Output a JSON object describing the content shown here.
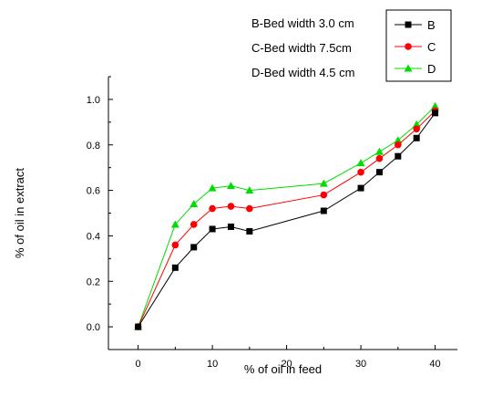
{
  "chart_data": {
    "type": "line",
    "title": "",
    "xlabel": "% of oil in feed",
    "ylabel": "% of oil in extract",
    "xlim": [
      -4,
      43
    ],
    "ylim": [
      -0.1,
      1.1
    ],
    "xticks": [
      0,
      10,
      20,
      30,
      40
    ],
    "yticks": [
      0.0,
      0.2,
      0.4,
      0.6,
      0.8,
      1.0
    ],
    "ytick_labels": [
      "0.0",
      "0.2",
      "0.4",
      "0.6",
      "0.8",
      "1.0"
    ],
    "grid": false,
    "legend_position": "top-right",
    "annotations": [
      "B-Bed width 3.0 cm",
      "C-Bed width 7.5cm",
      "D-Bed width 4.5 cm"
    ],
    "x": [
      0,
      5,
      7.5,
      10,
      12.5,
      15,
      25,
      30,
      32.5,
      35,
      37.5,
      40
    ],
    "series": [
      {
        "name": "B",
        "color": "#000000",
        "marker": "square",
        "values": [
          0.0,
          0.26,
          0.35,
          0.43,
          0.44,
          0.42,
          0.51,
          0.61,
          0.68,
          0.75,
          0.83,
          0.94
        ]
      },
      {
        "name": "C",
        "color": "#ff0000",
        "marker": "circle",
        "values": [
          0.0,
          0.36,
          0.45,
          0.52,
          0.53,
          0.52,
          0.58,
          0.68,
          0.74,
          0.8,
          0.87,
          0.95
        ]
      },
      {
        "name": "D",
        "color": "#00dd00",
        "marker": "triangle",
        "values": [
          0.0,
          0.45,
          0.54,
          0.61,
          0.62,
          0.6,
          0.63,
          0.72,
          0.77,
          0.82,
          0.89,
          0.97
        ]
      }
    ]
  }
}
